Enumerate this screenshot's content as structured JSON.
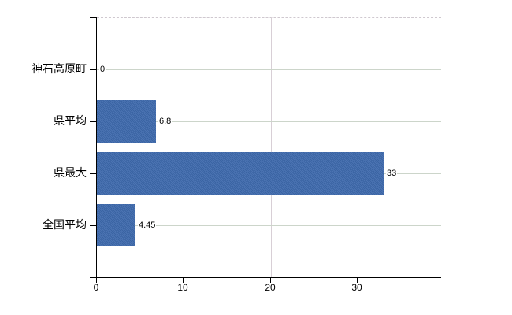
{
  "chart_data": {
    "type": "bar",
    "orientation": "horizontal",
    "title": "",
    "xlabel": "",
    "ylabel": "",
    "categories": [
      "神石高原町",
      "県平均",
      "県最大",
      "全国平均"
    ],
    "values": [
      0,
      6.8,
      33,
      4.45
    ],
    "value_labels": [
      "0",
      "6.8",
      "33",
      "4.45"
    ],
    "x_ticks": [
      0,
      10,
      20,
      30
    ],
    "x_tick_labels": [
      "0",
      "10",
      "20",
      "30"
    ],
    "xlim": [
      0,
      39.6
    ],
    "grid": true,
    "legend": false,
    "colors": {
      "bar": "#3e6aad",
      "axis": "#000000",
      "horizontal_gridline": "#ccd5ca",
      "vertical_gridline": "#d8cfd6",
      "plot_top_border": "#cfc8cf",
      "text": "#000000",
      "background": "#ffffff"
    }
  }
}
